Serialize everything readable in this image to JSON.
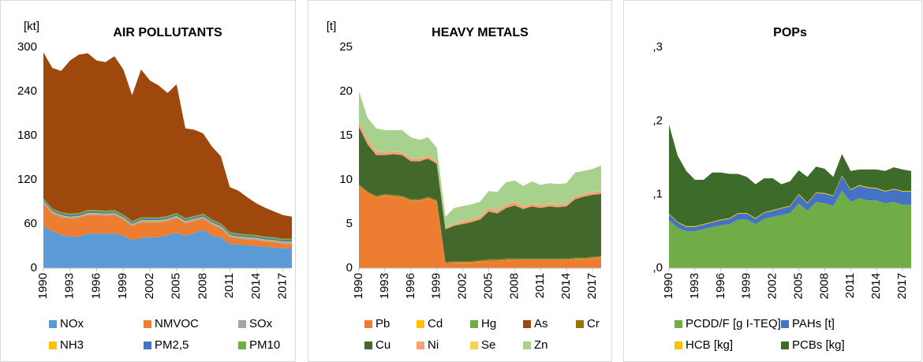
{
  "chart_data": [
    {
      "type": "area",
      "title": "AIR POLLUTANTS",
      "y_label": "[kt]",
      "x": [
        1990,
        1991,
        1992,
        1993,
        1994,
        1995,
        1996,
        1997,
        1998,
        1999,
        2000,
        2001,
        2002,
        2003,
        2004,
        2005,
        2006,
        2007,
        2008,
        2009,
        2010,
        2011,
        2012,
        2013,
        2014,
        2015,
        2016,
        2017,
        2018
      ],
      "xlim": [
        1990,
        2018
      ],
      "xticks": [
        1990,
        1993,
        1996,
        1999,
        2002,
        2005,
        2008,
        2011,
        2014,
        2017
      ],
      "ylim": [
        0,
        300
      ],
      "yticks": [
        0,
        60,
        120,
        180,
        240,
        300
      ],
      "series": [
        {
          "name": "NOx",
          "color": "#5b9bd5",
          "values": [
            58,
            50,
            45,
            43,
            43,
            47,
            47,
            47,
            47,
            44,
            38,
            41,
            42,
            42,
            45,
            48,
            44,
            48,
            52,
            44,
            42,
            33,
            32,
            31,
            30,
            29,
            28,
            27,
            27
          ]
        },
        {
          "name": "NMVOC",
          "color": "#ed7d31",
          "values": [
            30,
            24,
            24,
            24,
            25,
            25,
            25,
            24,
            25,
            22,
            19,
            21,
            20,
            20,
            19,
            20,
            17,
            16,
            15,
            15,
            12,
            9,
            8,
            8,
            8,
            7,
            7,
            6,
            6
          ]
        },
        {
          "name": "SOx",
          "color": "#a5a5a5",
          "values": [
            2,
            2,
            2,
            2,
            2,
            2,
            2,
            2,
            2,
            2,
            2,
            2,
            2,
            2,
            2,
            2,
            2,
            2,
            2,
            2,
            2,
            2,
            2,
            2,
            2,
            2,
            2,
            2,
            2
          ]
        },
        {
          "name": "NH3",
          "color": "#ffc000",
          "values": [
            1,
            1,
            1,
            1,
            1,
            1,
            1,
            1,
            1,
            1,
            1,
            1,
            1,
            1,
            1,
            1,
            1,
            1,
            1,
            1,
            1,
            1,
            1,
            1,
            1,
            1,
            1,
            1,
            1
          ]
        },
        {
          "name": "PM2,5",
          "color": "#4472c4",
          "values": [
            2,
            2,
            2,
            2,
            2,
            2,
            2,
            2,
            2,
            2,
            2,
            2,
            2,
            2,
            2,
            2,
            2,
            2,
            2,
            2,
            2,
            2,
            2,
            2,
            2,
            2,
            2,
            2,
            2
          ]
        },
        {
          "name": "PM10",
          "color": "#70ad47",
          "values": [
            2,
            2,
            2,
            2,
            2,
            2,
            2,
            2,
            2,
            2,
            2,
            2,
            2,
            2,
            2,
            2,
            2,
            2,
            2,
            2,
            2,
            2,
            2,
            2,
            2,
            2,
            2,
            2,
            2
          ]
        },
        {
          "color": "#9e480e",
          "values": [
            198,
            191,
            192,
            208,
            215,
            213,
            203,
            202,
            209,
            197,
            171,
            201,
            186,
            179,
            167,
            175,
            122,
            117,
            109,
            99,
            91,
            61,
            58,
            50,
            43,
            39,
            35,
            32,
            30
          ]
        }
      ]
    },
    {
      "type": "area",
      "title": "HEAVY METALS",
      "y_label": "[t]",
      "x": [
        1990,
        1991,
        1992,
        1993,
        1994,
        1995,
        1996,
        1997,
        1998,
        1999,
        2000,
        2001,
        2002,
        2003,
        2004,
        2005,
        2006,
        2007,
        2008,
        2009,
        2010,
        2011,
        2012,
        2013,
        2014,
        2015,
        2016,
        2017,
        2018
      ],
      "xlim": [
        1990,
        2018
      ],
      "xticks": [
        1990,
        1993,
        1996,
        1999,
        2002,
        2005,
        2008,
        2011,
        2014,
        2017
      ],
      "ylim": [
        0,
        25
      ],
      "yticks": [
        0,
        5,
        10,
        15,
        20,
        25
      ],
      "series": [
        {
          "name": "Pb",
          "color": "#ed7d31",
          "values": [
            9.3,
            8.5,
            8.0,
            8.2,
            8.1,
            8.0,
            7.6,
            7.6,
            7.9,
            7.5,
            0.5,
            0.6,
            0.6,
            0.6,
            0.7,
            0.8,
            0.8,
            0.9,
            0.9,
            0.9,
            0.9,
            0.9,
            0.9,
            0.9,
            0.9,
            1.0,
            1.0,
            1.1,
            1.2
          ]
        },
        {
          "name": "Cd",
          "color": "#ffc000",
          "values": [
            0.02,
            0.02,
            0.02,
            0.02,
            0.02,
            0.02,
            0.02,
            0.02,
            0.02,
            0.02,
            0.02,
            0.02,
            0.02,
            0.02,
            0.02,
            0.02,
            0.02,
            0.02,
            0.02,
            0.02,
            0.02,
            0.02,
            0.02,
            0.02,
            0.02,
            0.02,
            0.02,
            0.02,
            0.02
          ]
        },
        {
          "name": "Hg",
          "color": "#70ad47",
          "values": [
            0.03,
            0.03,
            0.03,
            0.03,
            0.03,
            0.03,
            0.03,
            0.03,
            0.03,
            0.03,
            0.03,
            0.03,
            0.03,
            0.03,
            0.03,
            0.03,
            0.03,
            0.03,
            0.03,
            0.03,
            0.03,
            0.03,
            0.03,
            0.03,
            0.03,
            0.03,
            0.03,
            0.03,
            0.03
          ]
        },
        {
          "name": "As",
          "color": "#9e480e",
          "values": [
            0.05,
            0.05,
            0.05,
            0.05,
            0.05,
            0.05,
            0.05,
            0.05,
            0.05,
            0.05,
            0.05,
            0.05,
            0.05,
            0.05,
            0.05,
            0.05,
            0.05,
            0.05,
            0.05,
            0.05,
            0.05,
            0.05,
            0.05,
            0.05,
            0.05,
            0.05,
            0.05,
            0.05,
            0.05
          ]
        },
        {
          "name": "Cr",
          "color": "#997300",
          "values": [
            0.1,
            0.1,
            0.1,
            0.1,
            0.1,
            0.1,
            0.1,
            0.1,
            0.1,
            0.1,
            0.1,
            0.1,
            0.1,
            0.1,
            0.1,
            0.1,
            0.1,
            0.1,
            0.1,
            0.1,
            0.1,
            0.1,
            0.1,
            0.1,
            0.1,
            0.1,
            0.1,
            0.1,
            0.1
          ]
        },
        {
          "name": "Cu",
          "color": "#43682b",
          "values": [
            6.5,
            5.3,
            4.6,
            4.4,
            4.6,
            4.6,
            4.3,
            4.3,
            4.3,
            4.1,
            3.7,
            4.0,
            4.2,
            4.4,
            4.6,
            5.4,
            5.2,
            5.7,
            6.0,
            5.6,
            5.9,
            5.7,
            5.9,
            5.8,
            5.9,
            6.6,
            6.9,
            7.0,
            7.0
          ]
        },
        {
          "name": "Ni",
          "color": "#f4a274",
          "values": [
            0.6,
            0.5,
            0.4,
            0.3,
            0.3,
            0.3,
            0.3,
            0.3,
            0.3,
            0.3,
            0.2,
            0.2,
            0.3,
            0.3,
            0.3,
            0.4,
            0.3,
            0.4,
            0.4,
            0.3,
            0.3,
            0.3,
            0.3,
            0.3,
            0.3,
            0.3,
            0.3,
            0.3,
            0.3
          ]
        },
        {
          "name": "Se",
          "color": "#ffd24d",
          "values": [
            0.02,
            0.02,
            0.02,
            0.02,
            0.02,
            0.02,
            0.02,
            0.02,
            0.02,
            0.02,
            0.02,
            0.02,
            0.02,
            0.02,
            0.02,
            0.02,
            0.02,
            0.02,
            0.02,
            0.02,
            0.02,
            0.02,
            0.02,
            0.02,
            0.02,
            0.02,
            0.02,
            0.02,
            0.02
          ]
        },
        {
          "name": "Zn",
          "color": "#a9d18e",
          "values": [
            3.4,
            2.5,
            2.6,
            2.5,
            2.4,
            2.5,
            2.4,
            2.1,
            2.1,
            1.5,
            1.2,
            1.8,
            1.7,
            1.7,
            1.7,
            1.9,
            2.1,
            2.5,
            2.4,
            2.3,
            2.5,
            2.3,
            2.3,
            2.3,
            2.3,
            2.7,
            2.6,
            2.6,
            2.9
          ]
        }
      ]
    },
    {
      "type": "area",
      "title": "POPs",
      "x": [
        1990,
        1991,
        1992,
        1993,
        1994,
        1995,
        1996,
        1997,
        1998,
        1999,
        2000,
        2001,
        2002,
        2003,
        2004,
        2005,
        2006,
        2007,
        2008,
        2009,
        2010,
        2011,
        2012,
        2013,
        2014,
        2015,
        2016,
        2017,
        2018
      ],
      "xlim": [
        1990,
        2018
      ],
      "xticks": [
        1990,
        1993,
        1996,
        1999,
        2002,
        2005,
        2008,
        2011,
        2014,
        2017
      ],
      "ylim": [
        0,
        0.3
      ],
      "yticks": [
        {
          "value": 0,
          "label": ",0"
        },
        {
          "value": 0.1,
          "label": ",1"
        },
        {
          "value": 0.2,
          "label": ",2"
        },
        {
          "value": 0.3,
          "label": ",3"
        }
      ],
      "series": [
        {
          "name": "PCDD/F [g I-TEQ]",
          "color": "#70ad47",
          "values": [
            0.065,
            0.055,
            0.05,
            0.05,
            0.053,
            0.056,
            0.058,
            0.06,
            0.066,
            0.066,
            0.06,
            0.067,
            0.07,
            0.072,
            0.075,
            0.088,
            0.078,
            0.09,
            0.088,
            0.085,
            0.105,
            0.09,
            0.095,
            0.092,
            0.092,
            0.088,
            0.09,
            0.086,
            0.086
          ]
        },
        {
          "name": "PAHs [t]",
          "color": "#4472c4",
          "values": [
            0.008,
            0.007,
            0.006,
            0.006,
            0.006,
            0.006,
            0.007,
            0.007,
            0.008,
            0.008,
            0.007,
            0.008,
            0.008,
            0.009,
            0.009,
            0.012,
            0.01,
            0.012,
            0.013,
            0.013,
            0.02,
            0.016,
            0.017,
            0.017,
            0.016,
            0.016,
            0.017,
            0.018,
            0.018
          ]
        },
        {
          "name": "HCB [kg]",
          "color": "#ffc000",
          "values": [
            0.001,
            0.001,
            0.001,
            0.001,
            0.001,
            0.001,
            0.001,
            0.001,
            0.001,
            0.001,
            0.001,
            0.001,
            0.001,
            0.001,
            0.001,
            0.001,
            0.001,
            0.001,
            0.001,
            0.001,
            0.001,
            0.001,
            0.001,
            0.001,
            0.001,
            0.001,
            0.001,
            0.001,
            0.001
          ]
        },
        {
          "name": "PCBs [kg]",
          "color": "#3d6b2a",
          "values": [
            0.121,
            0.09,
            0.075,
            0.063,
            0.06,
            0.067,
            0.064,
            0.06,
            0.053,
            0.049,
            0.046,
            0.046,
            0.043,
            0.032,
            0.033,
            0.032,
            0.035,
            0.035,
            0.033,
            0.025,
            0.029,
            0.025,
            0.021,
            0.024,
            0.025,
            0.027,
            0.029,
            0.029,
            0.027
          ]
        }
      ]
    }
  ]
}
